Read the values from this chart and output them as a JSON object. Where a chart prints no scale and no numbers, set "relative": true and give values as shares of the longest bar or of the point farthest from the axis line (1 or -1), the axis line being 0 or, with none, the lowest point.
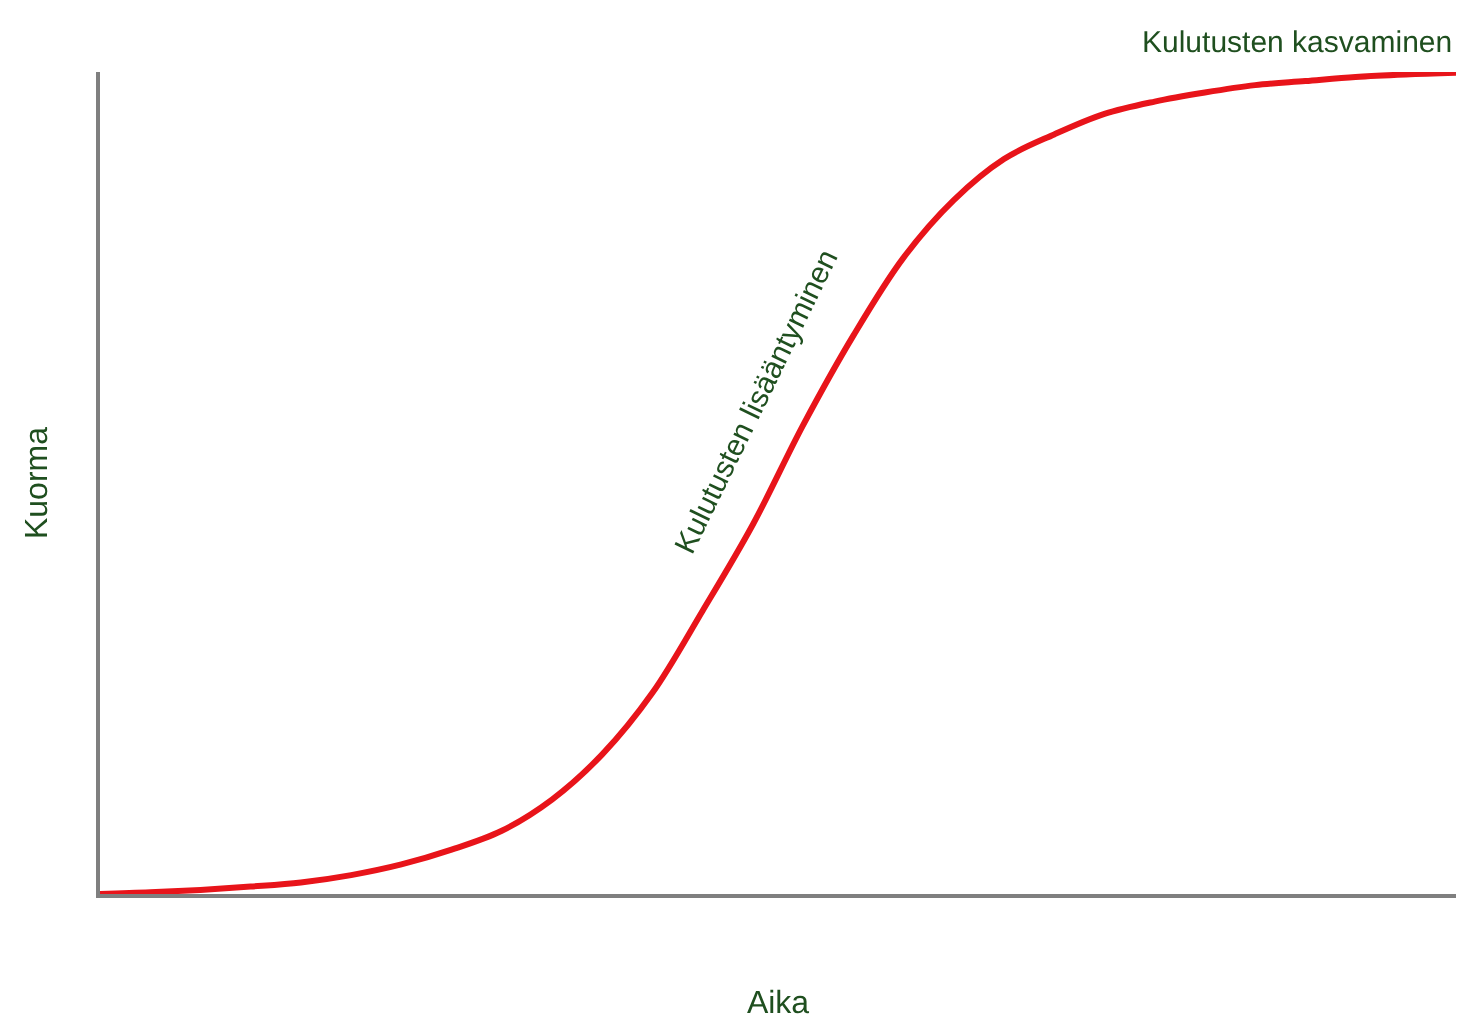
{
  "chart_data": {
    "type": "line",
    "relative": true,
    "xlabel": "Aika",
    "ylabel": "Kuorma",
    "categories": [
      null,
      null,
      null,
      null,
      null,
      null,
      null,
      null,
      null,
      null,
      null,
      null,
      null,
      null,
      null,
      null,
      null,
      null,
      null,
      null,
      null,
      null,
      null,
      null,
      null,
      null,
      null,
      null
    ],
    "series": [
      {
        "color": "#e8141a",
        "values": [
          0,
          0.002,
          0.005,
          0.009,
          0.014,
          0.023,
          0.036,
          0.054,
          0.077,
          0.115,
          0.17,
          0.245,
          0.345,
          0.45,
          0.571,
          0.68,
          0.775,
          0.845,
          0.895,
          0.925,
          0.95,
          0.965,
          0.976,
          0.985,
          0.99,
          0.995,
          0.998,
          1
        ]
      }
    ],
    "annotations": [
      "Kulutusten kasvaminen",
      "Kulutusten lisääntyminen"
    ],
    "marker": "none",
    "line_style": "solid"
  }
}
